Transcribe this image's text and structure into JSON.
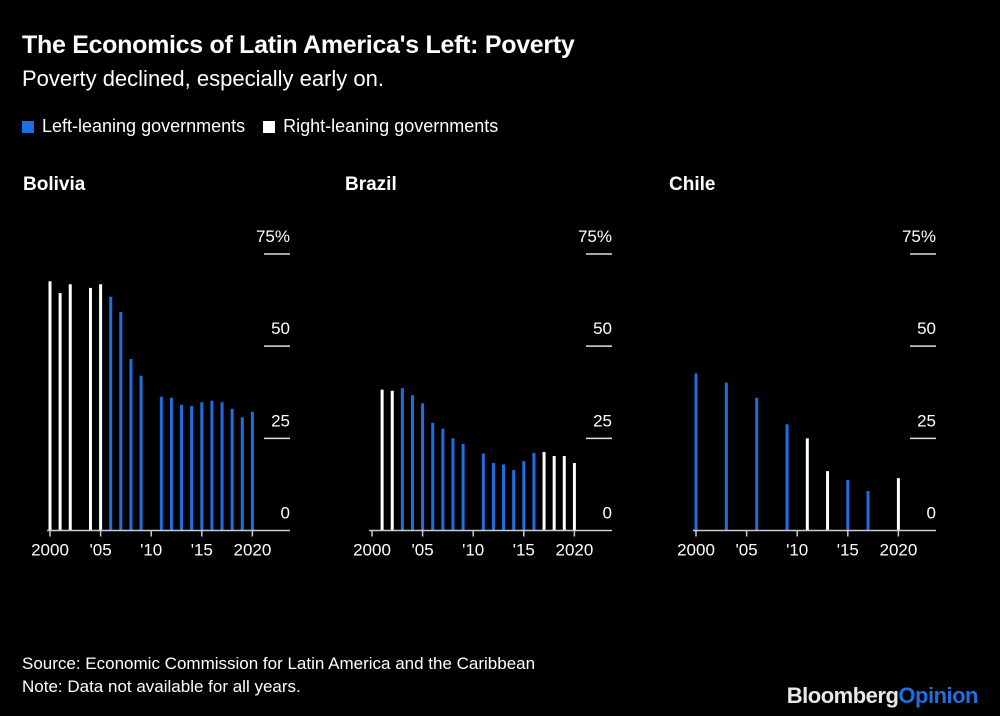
{
  "title": "The Economics of Latin America's Left: Poverty",
  "subtitle": "Poverty declined, especially early on.",
  "legend": [
    {
      "label": "Left-leaning governments",
      "color": "#1f6fe0"
    },
    {
      "label": "Right-leaning governments",
      "color": "#ffffff"
    }
  ],
  "source": "Source: Economic Commission for Latin America and the Caribbean",
  "note": "Note: Data not available for all years.",
  "logo": {
    "part1": "Bloomberg",
    "part2": "Opinion",
    "color1": "#ffffff",
    "color2": "#1f6fe0"
  },
  "chart_data": [
    {
      "type": "bar",
      "title": "Bolivia",
      "ylim": [
        0,
        75
      ],
      "yticks": [
        "0",
        "25",
        "50",
        "75%"
      ],
      "xticks": [
        "2000",
        "'05",
        "'10",
        "'15",
        "2020"
      ],
      "bars": [
        {
          "year": 2000,
          "value": 67.6,
          "government": "right"
        },
        {
          "year": 2001,
          "value": 64.4,
          "government": "right"
        },
        {
          "year": 2002,
          "value": 66.8,
          "government": "right"
        },
        {
          "year": 2004,
          "value": 65.8,
          "government": "right"
        },
        {
          "year": 2005,
          "value": 66.8,
          "government": "right"
        },
        {
          "year": 2006,
          "value": 63.4,
          "government": "left"
        },
        {
          "year": 2007,
          "value": 59.3,
          "government": "left"
        },
        {
          "year": 2008,
          "value": 46.5,
          "government": "left"
        },
        {
          "year": 2009,
          "value": 42.0,
          "government": "left"
        },
        {
          "year": 2011,
          "value": 36.3,
          "government": "left"
        },
        {
          "year": 2012,
          "value": 36.0,
          "government": "left"
        },
        {
          "year": 2013,
          "value": 34.1,
          "government": "left"
        },
        {
          "year": 2014,
          "value": 33.8,
          "government": "left"
        },
        {
          "year": 2015,
          "value": 34.8,
          "government": "left"
        },
        {
          "year": 2016,
          "value": 35.2,
          "government": "left"
        },
        {
          "year": 2017,
          "value": 34.8,
          "government": "left"
        },
        {
          "year": 2018,
          "value": 33.0,
          "government": "left"
        },
        {
          "year": 2019,
          "value": 30.7,
          "government": "left"
        },
        {
          "year": 2020,
          "value": 32.2,
          "government": "left"
        }
      ]
    },
    {
      "type": "bar",
      "title": "Brazil",
      "ylim": [
        0,
        75
      ],
      "yticks": [
        "0",
        "25",
        "50",
        "75%"
      ],
      "xticks": [
        "2000",
        "'05",
        "'10",
        "'15",
        "2020"
      ],
      "bars": [
        {
          "year": 2001,
          "value": 38.2,
          "government": "right"
        },
        {
          "year": 2002,
          "value": 37.9,
          "government": "right"
        },
        {
          "year": 2003,
          "value": 38.6,
          "government": "left"
        },
        {
          "year": 2004,
          "value": 36.7,
          "government": "left"
        },
        {
          "year": 2005,
          "value": 34.5,
          "government": "left"
        },
        {
          "year": 2006,
          "value": 29.2,
          "government": "left"
        },
        {
          "year": 2007,
          "value": 27.6,
          "government": "left"
        },
        {
          "year": 2008,
          "value": 25.0,
          "government": "left"
        },
        {
          "year": 2009,
          "value": 23.5,
          "government": "left"
        },
        {
          "year": 2011,
          "value": 20.9,
          "government": "left"
        },
        {
          "year": 2012,
          "value": 18.3,
          "government": "left"
        },
        {
          "year": 2013,
          "value": 17.9,
          "government": "left"
        },
        {
          "year": 2014,
          "value": 16.4,
          "government": "left"
        },
        {
          "year": 2015,
          "value": 18.8,
          "government": "left"
        },
        {
          "year": 2016,
          "value": 21.0,
          "government": "left"
        },
        {
          "year": 2017,
          "value": 21.3,
          "government": "right"
        },
        {
          "year": 2018,
          "value": 20.2,
          "government": "right"
        },
        {
          "year": 2019,
          "value": 20.2,
          "government": "right"
        },
        {
          "year": 2020,
          "value": 18.3,
          "government": "right"
        }
      ]
    },
    {
      "type": "bar",
      "title": "Chile",
      "ylim": [
        0,
        75
      ],
      "yticks": [
        "0",
        "25",
        "50",
        "75%"
      ],
      "xticks": [
        "2000",
        "'05",
        "'10",
        "'15",
        "2020"
      ],
      "bars": [
        {
          "year": 2000,
          "value": 42.6,
          "government": "left"
        },
        {
          "year": 2003,
          "value": 40.1,
          "government": "left"
        },
        {
          "year": 2006,
          "value": 36.0,
          "government": "left"
        },
        {
          "year": 2009,
          "value": 28.8,
          "government": "left"
        },
        {
          "year": 2011,
          "value": 25.0,
          "government": "right"
        },
        {
          "year": 2013,
          "value": 16.1,
          "government": "right"
        },
        {
          "year": 2015,
          "value": 13.7,
          "government": "left"
        },
        {
          "year": 2017,
          "value": 10.7,
          "government": "left"
        },
        {
          "year": 2020,
          "value": 14.2,
          "government": "right"
        }
      ]
    }
  ]
}
